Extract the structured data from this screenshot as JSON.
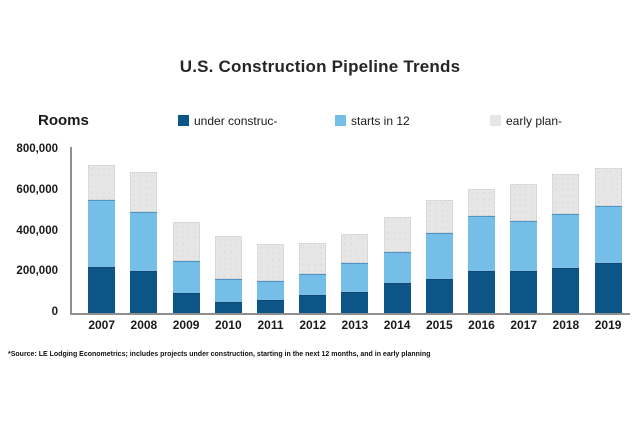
{
  "title": "U.S. Construction Pipeline Trends",
  "y_axis_title": "Rooms",
  "footnote": "*Source: LE Lodging Econometrics; includes projects under construction, starting in the next 12 months, and in early planning",
  "colors": {
    "under_construction": "#0d5586",
    "starts_in_12": "#74bee8",
    "early_planning": "#e6e6e6",
    "axis": "#8f8f8f"
  },
  "legend": [
    {
      "label": "under construc-",
      "color": "#0d5586"
    },
    {
      "label": "starts in 12",
      "color": "#74bee8"
    },
    {
      "label": "early plan-",
      "color": "#e6e6e6"
    }
  ],
  "chart_data": {
    "type": "bar",
    "stacked": true,
    "title": "U.S. Construction Pipeline Trends",
    "ylabel": "Rooms",
    "xlabel": "",
    "ylim": [
      0,
      800000
    ],
    "grid": false,
    "legend_position": "top",
    "categories": [
      "2007",
      "2008",
      "2009",
      "2010",
      "2011",
      "2012",
      "2013",
      "2014",
      "2015",
      "2016",
      "2017",
      "2018",
      "2019"
    ],
    "series": [
      {
        "name": "under construc-",
        "color": "#0d5586",
        "values": [
          225000,
          205000,
          100000,
          55000,
          65000,
          90000,
          105000,
          145000,
          165000,
          205000,
          205000,
          220000,
          245000
        ]
      },
      {
        "name": "starts in 12",
        "color": "#74bee8",
        "values": [
          330000,
          290000,
          155000,
          110000,
          90000,
          100000,
          140000,
          155000,
          230000,
          270000,
          245000,
          265000,
          280000
        ]
      },
      {
        "name": "early plan-",
        "color": "#e6e6e6",
        "values": [
          170000,
          195000,
          190000,
          215000,
          185000,
          155000,
          145000,
          170000,
          160000,
          135000,
          185000,
          195000,
          185000
        ]
      }
    ],
    "totals": [
      725000,
      690000,
      445000,
      380000,
      340000,
      345000,
      390000,
      470000,
      555000,
      610000,
      635000,
      680000,
      710000
    ],
    "yticks": [
      {
        "value": 800000,
        "label": "800,000"
      },
      {
        "value": 600000,
        "label": "600,000"
      },
      {
        "value": 400000,
        "label": "400,000"
      },
      {
        "value": 200000,
        "label": "200,000"
      },
      {
        "value": 0,
        "label": "0"
      }
    ]
  }
}
